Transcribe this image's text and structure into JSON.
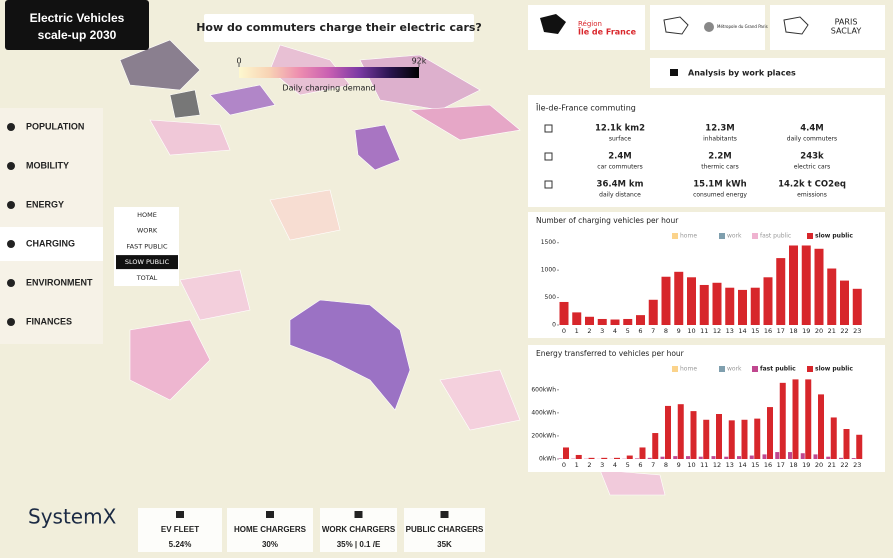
{
  "header": {
    "title_line1": "Electric Vehicles",
    "title_line2": "scale-up 2030",
    "question": "How do commuters charge their electric cars?"
  },
  "map_legend": {
    "title": "Daily charging demand",
    "lim": [
      0,
      92000
    ],
    "ticks": [
      0,
      {
        "value": 92000,
        "label": "92k"
      }
    ],
    "colors": [
      "#fdf8cf",
      "#f8d3b4",
      "#ee8eb0",
      "#c95fb2",
      "#7b3aa4",
      "#2c1552",
      "#000000"
    ]
  },
  "logos": [
    "Région",
    "Île de France",
    "Métropole du Grand Paris",
    "PARIS",
    "SACLAY"
  ],
  "analysis_button": "Analysis by work places",
  "menu": {
    "items": [
      "POPULATION",
      "MOBILITY",
      "ENERGY",
      "CHARGING",
      "ENVIRONMENT",
      "FINANCES"
    ],
    "active": 3
  },
  "filters": {
    "options": [
      "HOME",
      "WORK",
      "FAST PUBLIC",
      "SLOW PUBLIC",
      "TOTAL"
    ],
    "selected": 3
  },
  "commuting": {
    "title": "Île-de-France commuting",
    "stats": [
      {
        "value": "12.1k km2",
        "label": "surface"
      },
      {
        "value": "12.3M",
        "label": "inhabitants"
      },
      {
        "value": "4.4M",
        "label": "daily commuters"
      },
      {
        "value": "2.4M",
        "label": "car commuters"
      },
      {
        "value": "2.2M",
        "label": "thermic cars"
      },
      {
        "value": "243k",
        "label": "electric cars"
      },
      {
        "value": "36.4M km",
        "label": "daily distance"
      },
      {
        "value": "15.1M kWh",
        "label": "consumed energy"
      },
      {
        "value": "14.2k t CO2eq",
        "label": "emissions"
      }
    ]
  },
  "chart_data": [
    {
      "type": "bar",
      "title": "Number of charging vehicles per hour",
      "categories": [
        "0",
        "1",
        "2",
        "3",
        "4",
        "5",
        "6",
        "7",
        "8",
        "9",
        "10",
        "11",
        "12",
        "13",
        "14",
        "15",
        "16",
        "17",
        "18",
        "19",
        "20",
        "21",
        "22",
        "23"
      ],
      "series": [
        {
          "name": "home",
          "color": "#fbd38b"
        },
        {
          "name": "work",
          "color": "#7f9fae"
        },
        {
          "name": "fast public",
          "color": "#efb3d0"
        },
        {
          "name": "slow public",
          "color": "#d7262b",
          "values": [
            420,
            230,
            150,
            110,
            100,
            110,
            180,
            460,
            880,
            970,
            870,
            730,
            770,
            680,
            640,
            680,
            870,
            1220,
            1450,
            1450,
            1390,
            1030,
            810,
            660
          ]
        }
      ],
      "ylim": [
        0,
        1550
      ],
      "yticks": [
        0,
        500,
        1000,
        1500
      ]
    },
    {
      "type": "bar",
      "title": "Energy transferred to vehicles per hour",
      "categories": [
        "0",
        "1",
        "2",
        "3",
        "4",
        "5",
        "6",
        "7",
        "8",
        "9",
        "10",
        "11",
        "12",
        "13",
        "14",
        "15",
        "16",
        "17",
        "18",
        "19",
        "20",
        "21",
        "22",
        "23"
      ],
      "series": [
        {
          "name": "home",
          "color": "#fbd38b"
        },
        {
          "name": "work",
          "color": "#7f9fae"
        },
        {
          "name": "fast public",
          "color": "#c0478f",
          "values": [
            5,
            3,
            2,
            1,
            1,
            2,
            5,
            10,
            20,
            25,
            25,
            20,
            25,
            20,
            25,
            30,
            40,
            60,
            60,
            50,
            40,
            20,
            10,
            8
          ]
        },
        {
          "name": "slow public",
          "color": "#d7262b",
          "values": [
            100,
            35,
            10,
            10,
            10,
            30,
            100,
            225,
            460,
            475,
            415,
            340,
            390,
            335,
            340,
            350,
            450,
            660,
            690,
            690,
            560,
            360,
            260,
            210
          ]
        }
      ],
      "ylim": [
        0,
        650
      ],
      "yticks": [
        {
          "value": 0,
          "label": "0kWh"
        },
        {
          "value": 200,
          "label": "200kWh"
        },
        {
          "value": 400,
          "label": "400kWh"
        },
        {
          "value": 600,
          "label": "600kWh"
        }
      ]
    }
  ],
  "footer": {
    "brand": "SystemX",
    "kpis": [
      {
        "label": "EV FLEET",
        "value": "5.24%"
      },
      {
        "label": "HOME CHARGERS",
        "value": "30%"
      },
      {
        "label": "WORK CHARGERS",
        "value": "35% | 0.1 /E"
      },
      {
        "label": "PUBLIC CHARGERS",
        "value": "35K"
      }
    ]
  }
}
